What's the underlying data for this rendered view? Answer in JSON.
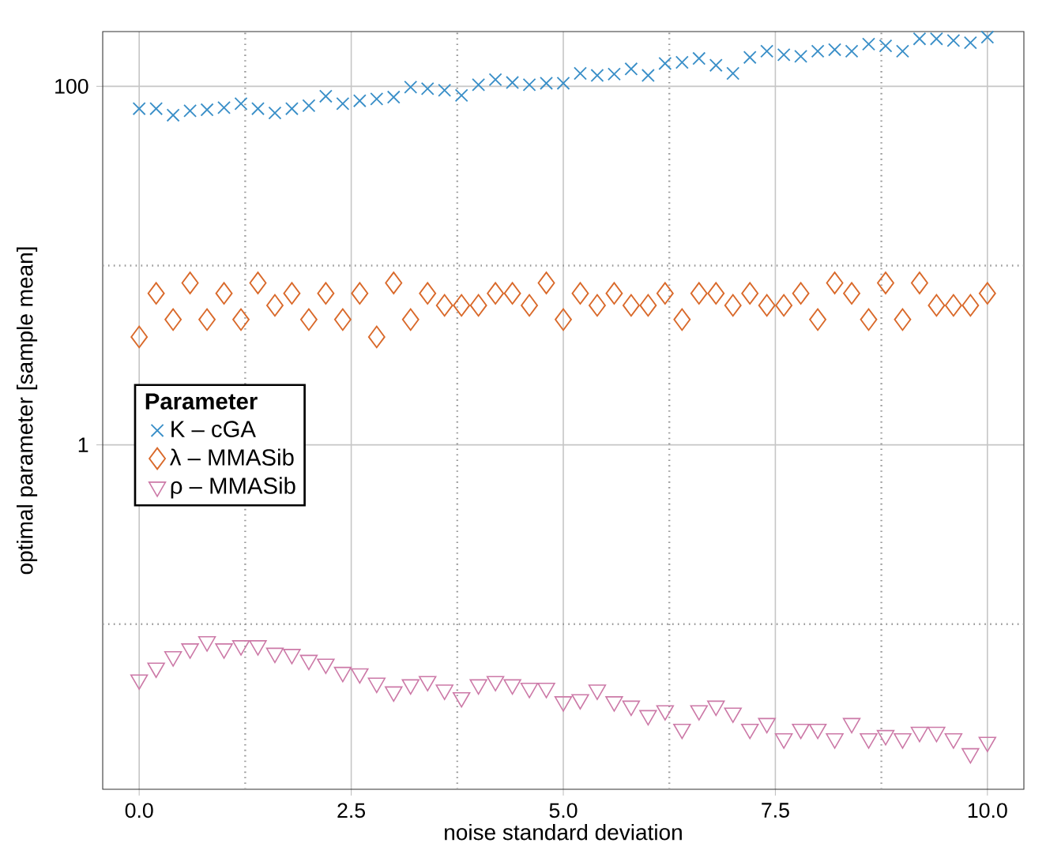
{
  "chart_data": {
    "type": "scatter",
    "xlabel": "noise standard deviation",
    "ylabel": "optimal parameter [sample mean]",
    "legend_title": "Parameter",
    "legend": "left",
    "grid": true,
    "log": "y",
    "xlim": [
      -0.43,
      10.43
    ],
    "ylim": [
      0.012,
      202
    ],
    "xticks": [
      {
        "value": 0,
        "label": "0.0"
      },
      {
        "value": 1.25,
        "label": null
      },
      2.5,
      {
        "value": 3.75,
        "label": null
      },
      {
        "value": 5,
        "label": "5.0"
      },
      {
        "value": 6.25,
        "label": null
      },
      {
        "value": 7.5,
        "label": "7.5"
      },
      {
        "value": 8.75,
        "label": null
      },
      {
        "value": 10,
        "label": "10.0"
      }
    ],
    "yticks": [
      {
        "value": 0.1,
        "label": null
      },
      1,
      {
        "value": 10,
        "label": null
      },
      100
    ],
    "x": [
      0,
      0.2,
      0.4,
      0.6,
      0.8,
      1,
      1.2,
      1.4,
      1.6,
      1.8,
      2,
      2.2,
      2.4,
      2.6,
      2.8,
      3,
      3.2,
      3.4,
      3.6,
      3.8,
      4,
      4.2,
      4.4,
      4.6,
      4.8,
      5,
      5.2,
      5.4,
      5.6,
      5.8,
      6,
      6.2,
      6.4,
      6.6,
      6.8,
      7,
      7.2,
      7.4,
      7.6,
      7.8,
      8,
      8.2,
      8.4,
      8.6,
      8.8,
      9,
      9.2,
      9.4,
      9.6,
      9.8,
      10
    ],
    "series": [
      {
        "name": "K – cGA",
        "color": "#3a8fc8",
        "marker": "cross",
        "values": [
          75,
          75,
          69,
          73,
          74,
          76,
          80,
          75,
          71,
          75,
          78,
          88,
          80,
          83,
          85,
          87,
          99,
          97,
          95,
          89,
          102,
          109,
          105,
          102,
          104,
          104,
          118,
          115,
          117,
          125,
          115,
          134,
          136,
          143,
          131,
          118,
          145,
          157,
          150,
          147,
          157,
          160,
          157,
          172,
          168,
          157,
          184,
          184,
          180,
          175,
          188
        ]
      },
      {
        "name": "λ – MMASib",
        "color": "#d9692a",
        "marker": "diamond",
        "values": [
          4,
          7,
          5,
          8,
          5,
          7,
          5,
          8,
          6,
          7,
          5,
          7,
          5,
          7,
          4,
          8,
          5,
          7,
          6,
          6,
          6,
          7,
          7,
          6,
          8,
          5,
          7,
          6,
          7,
          6,
          6,
          7,
          5,
          7,
          7,
          6,
          7,
          6,
          6,
          7,
          5,
          8,
          7,
          5,
          8,
          5,
          8,
          6,
          6,
          6,
          7
        ]
      },
      {
        "name": "ρ – MMASib",
        "color": "#cc79a7",
        "marker": "triangle",
        "values": [
          0.049,
          0.057,
          0.066,
          0.073,
          0.08,
          0.073,
          0.076,
          0.076,
          0.069,
          0.068,
          0.063,
          0.06,
          0.054,
          0.053,
          0.047,
          0.042,
          0.046,
          0.048,
          0.043,
          0.039,
          0.046,
          0.048,
          0.046,
          0.044,
          0.044,
          0.037,
          0.038,
          0.043,
          0.037,
          0.035,
          0.031,
          0.033,
          0.026,
          0.033,
          0.035,
          0.032,
          0.026,
          0.028,
          0.023,
          0.026,
          0.026,
          0.023,
          0.028,
          0.023,
          0.024,
          0.023,
          0.025,
          0.025,
          0.023,
          0.019,
          0.022
        ]
      }
    ]
  }
}
